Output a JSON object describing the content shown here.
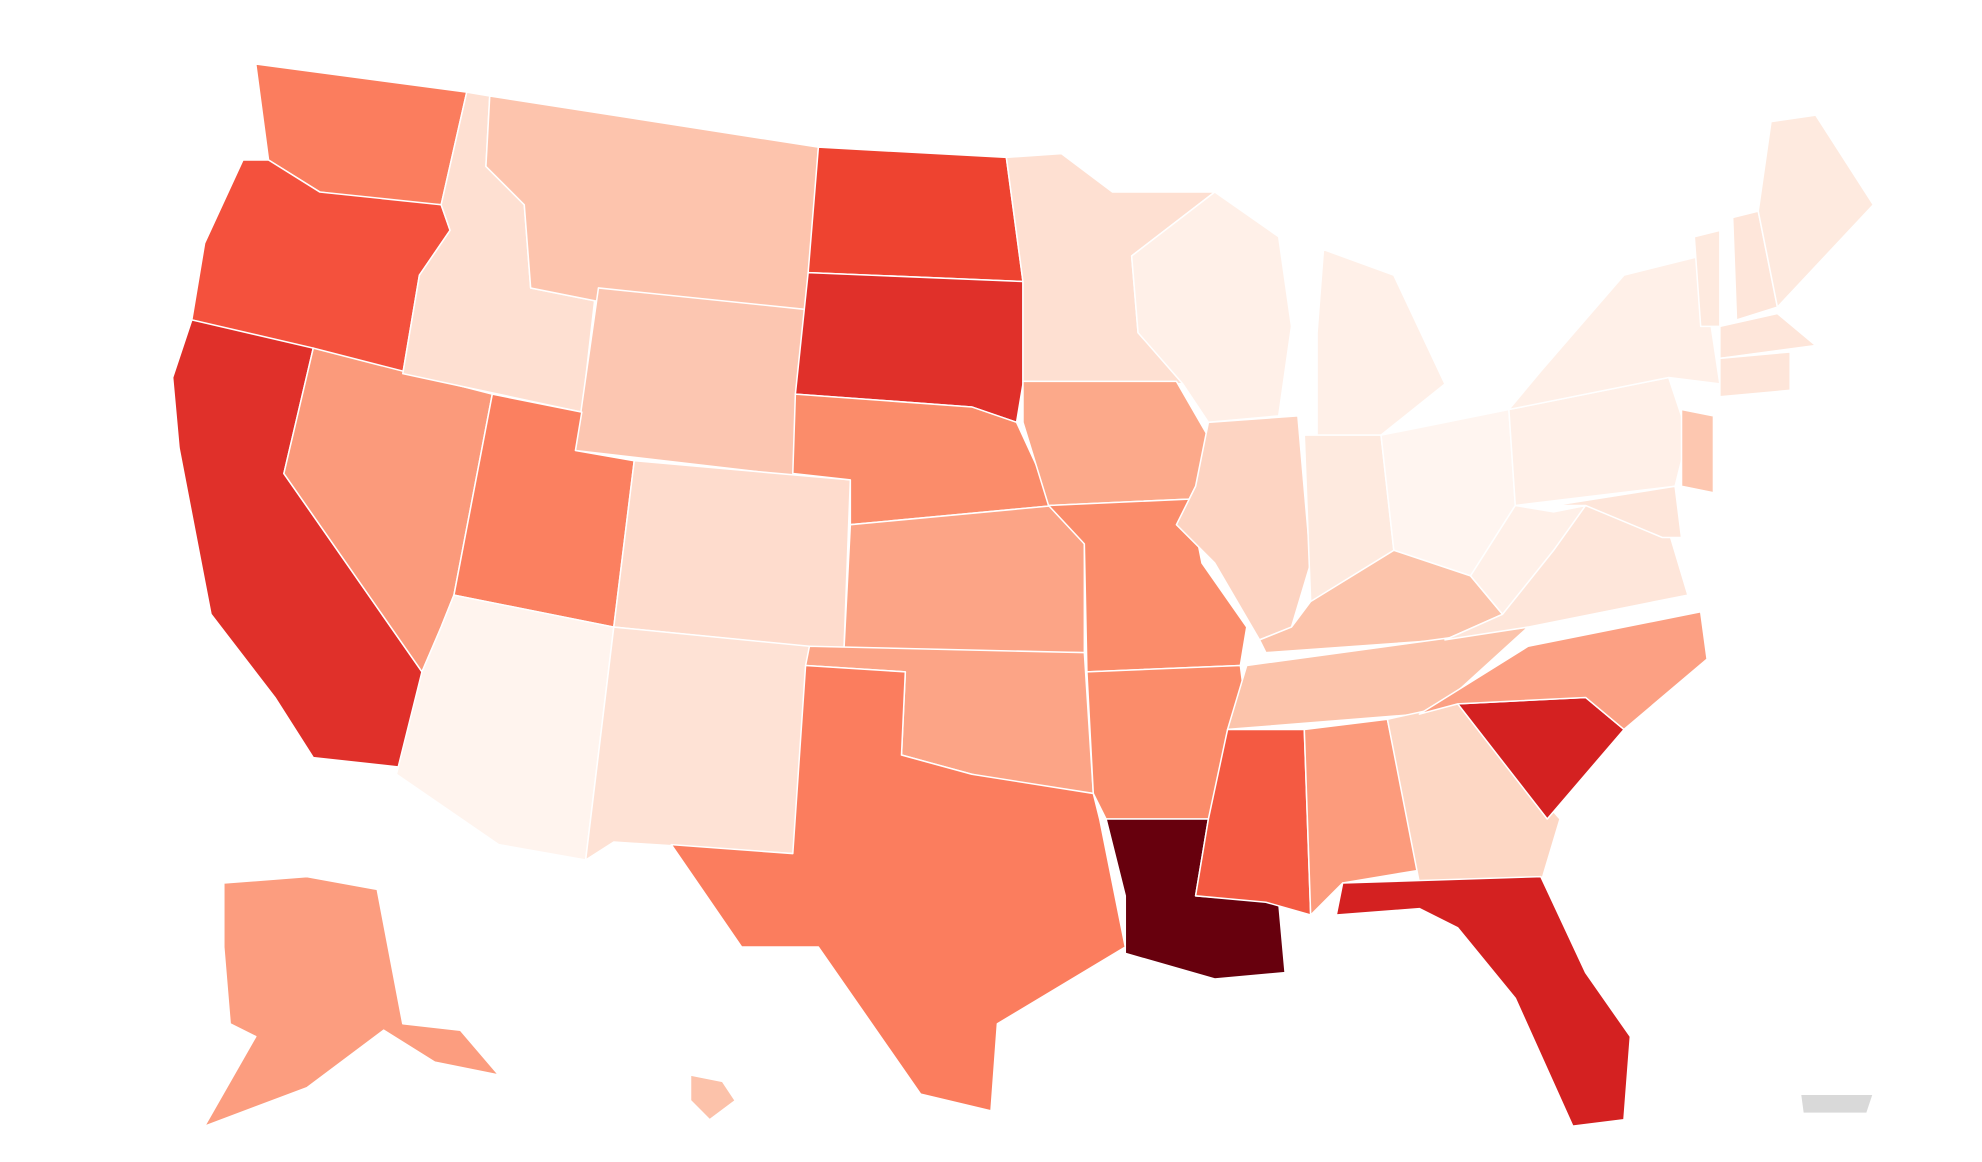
{
  "map": {
    "regions": [
      {
        "color": "#fb7d5e"
      },
      {
        "color": "#f4513d"
      },
      {
        "color": "#e0302a"
      },
      {
        "color": "#fb9a7b"
      },
      {
        "color": "#fee0d2"
      },
      {
        "color": "#fdc4ad"
      },
      {
        "color": "#fcc6b1"
      },
      {
        "color": "#fb8060"
      },
      {
        "color": "#fff4ee"
      },
      {
        "color": "#fedccd"
      },
      {
        "color": "#fee2d5"
      },
      {
        "color": "#ee4330"
      },
      {
        "color": "#e0302a"
      },
      {
        "color": "#fb8c6a"
      },
      {
        "color": "#fca486"
      },
      {
        "color": "#fca486"
      },
      {
        "color": "#fb7d5e"
      },
      {
        "color": "#fee0d2"
      },
      {
        "color": "#fca98a"
      },
      {
        "color": "#fb8c6a"
      },
      {
        "color": "#fb8c6a"
      },
      {
        "color": "#67000d"
      },
      {
        "color": "#fff0e8"
      },
      {
        "color": "#fdd4c2"
      },
      {
        "color": "#fff0e8"
      },
      {
        "color": "#feeadf"
      },
      {
        "color": "#fff5f0"
      },
      {
        "color": "#fcc4ab"
      },
      {
        "color": "#fcc4ab"
      },
      {
        "color": "#f45a42"
      },
      {
        "color": "#fc9b7c"
      },
      {
        "color": "#fdd7c4"
      },
      {
        "color": "#d42121"
      },
      {
        "color": "#d42121"
      },
      {
        "color": "#fca083"
      },
      {
        "color": "#fee6da"
      },
      {
        "color": "#fff0e8"
      },
      {
        "color": "#fff0e8"
      },
      {
        "color": "#fff0e8"
      },
      {
        "color": "#fee6da"
      },
      {
        "color": "#fdc7b0"
      },
      {
        "color": "#feeadf"
      },
      {
        "color": "#fee6da"
      },
      {
        "color": "#feeadf"
      },
      {
        "color": "#fee6da"
      },
      {
        "color": "#fee6da"
      },
      {
        "color": "#fc9d7f"
      },
      {
        "color": "#fcc2aa"
      },
      {
        "color": "#d9d9d9"
      }
    ]
  }
}
